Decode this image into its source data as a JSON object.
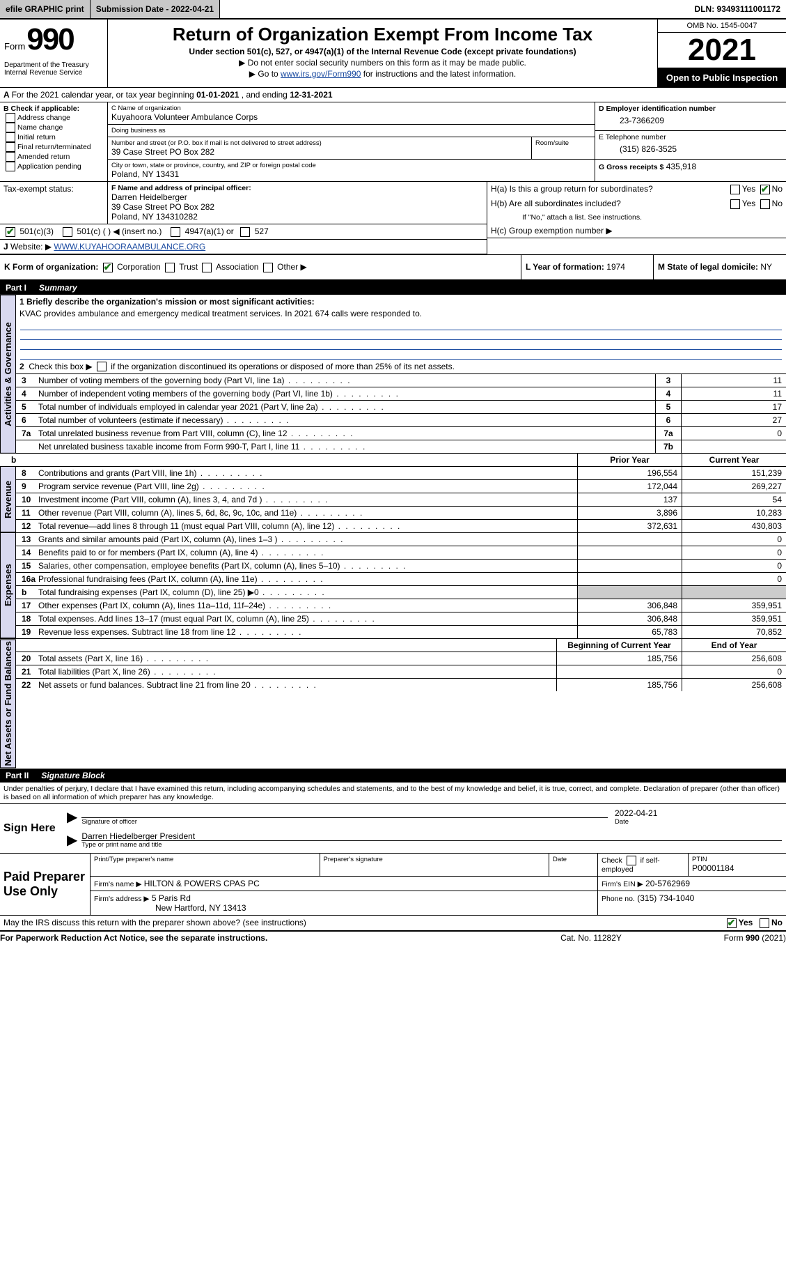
{
  "colors": {
    "link": "#1a4aa0",
    "sidetab_bg": "#d9d9f0",
    "grey_cell": "#cccccc",
    "topbar_btn": "#c8c8c8",
    "check": "#1a7a1a"
  },
  "topbar": {
    "efile": "efile GRAPHIC print",
    "submission_label": "Submission Date - 2022-04-21",
    "dln": "DLN: 93493111001172"
  },
  "header": {
    "form_word": "Form",
    "form_no": "990",
    "dept": "Department of the Treasury\nInternal Revenue Service",
    "title": "Return of Organization Exempt From Income Tax",
    "sub1": "Under section 501(c), 527, or 4947(a)(1) of the Internal Revenue Code (except private foundations)",
    "sub2": "▶ Do not enter social security numbers on this form as it may be made public.",
    "sub3_pre": "▶ Go to ",
    "sub3_link": "www.irs.gov/Form990",
    "sub3_post": " for instructions and the latest information.",
    "omb": "OMB No. 1545-0047",
    "year": "2021",
    "open_pub": "Open to Public Inspection"
  },
  "lineA": {
    "text_pre": "For the 2021 calendar year, or tax year beginning ",
    "begin": "01-01-2021",
    "mid": " , and ending ",
    "end": "12-31-2021"
  },
  "boxB": {
    "label": "B Check if applicable:",
    "items": [
      "Address change",
      "Name change",
      "Initial return",
      "Final return/terminated",
      "Amended return",
      "Application pending"
    ]
  },
  "boxC": {
    "label": "C Name of organization",
    "name": "Kuyahoora Volunteer Ambulance Corps",
    "dba_label": "Doing business as",
    "dba": "",
    "addr_label": "Number and street (or P.O. box if mail is not delivered to street address)",
    "room_label": "Room/suite",
    "addr": "39 Case Street PO Box 282",
    "city_label": "City or town, state or province, country, and ZIP or foreign postal code",
    "city": "Poland, NY  13431"
  },
  "boxD": {
    "label": "D Employer identification number",
    "value": "23-7366209"
  },
  "boxE": {
    "label": "E Telephone number",
    "value": "(315) 826-3525"
  },
  "boxG": {
    "label": "G Gross receipts $",
    "value": "435,918"
  },
  "boxF": {
    "label": "F Name and address of principal officer:",
    "lines": [
      "Darren Heidelberger",
      "39 Case Street PO Box 282",
      "Poland, NY  134310282"
    ]
  },
  "boxH": {
    "ha": "H(a)  Is this a group return for subordinates?",
    "hb": "H(b)  Are all subordinates included?",
    "hb_note": "If \"No,\" attach a list. See instructions.",
    "hc": "H(c)  Group exemption number ▶",
    "yes": "Yes",
    "no": "No"
  },
  "lineI": {
    "label": "Tax-exempt status:",
    "opts": [
      "501(c)(3)",
      "501(c) (  ) ◀ (insert no.)",
      "4947(a)(1) or",
      "527"
    ]
  },
  "lineJ": {
    "label": "Website: ▶",
    "value": "WWW.KUYAHOORAAMBULANCE.ORG"
  },
  "lineK": {
    "label": "K Form of organization:",
    "opts": [
      "Corporation",
      "Trust",
      "Association",
      "Other ▶"
    ]
  },
  "lineL": {
    "label": "L Year of formation:",
    "value": "1974"
  },
  "lineM": {
    "label": "M State of legal domicile:",
    "value": "NY"
  },
  "part1": {
    "bar": "Part I",
    "title": "Summary",
    "q1_label": "1  Briefly describe the organization's mission or most significant activities:",
    "q1_text": "KVAC provides ambulance and emergency medical treatment services. In 2021 674 calls were responded to.",
    "q2": "2  Check this box ▶      if the organization discontinued its operations or disposed of more than 25% of its net assets.",
    "governance": [
      {
        "n": "3",
        "d": "Number of voting members of the governing body (Part VI, line 1a)",
        "c": "3",
        "v": "11"
      },
      {
        "n": "4",
        "d": "Number of independent voting members of the governing body (Part VI, line 1b)",
        "c": "4",
        "v": "11"
      },
      {
        "n": "5",
        "d": "Total number of individuals employed in calendar year 2021 (Part V, line 2a)",
        "c": "5",
        "v": "17"
      },
      {
        "n": "6",
        "d": "Total number of volunteers (estimate if necessary)",
        "c": "6",
        "v": "27"
      },
      {
        "n": "7a",
        "d": "Total unrelated business revenue from Part VIII, column (C), line 12",
        "c": "7a",
        "v": "0"
      },
      {
        "n": "",
        "d": "Net unrelated business taxable income from Form 990-T, Part I, line 11",
        "c": "7b",
        "v": ""
      }
    ],
    "cols": {
      "prior": "Prior Year",
      "current": "Current Year",
      "bcy": "Beginning of Current Year",
      "eoy": "End of Year"
    },
    "revenue": [
      {
        "n": "8",
        "d": "Contributions and grants (Part VIII, line 1h)",
        "p": "196,554",
        "c": "151,239"
      },
      {
        "n": "9",
        "d": "Program service revenue (Part VIII, line 2g)",
        "p": "172,044",
        "c": "269,227"
      },
      {
        "n": "10",
        "d": "Investment income (Part VIII, column (A), lines 3, 4, and 7d )",
        "p": "137",
        "c": "54"
      },
      {
        "n": "11",
        "d": "Other revenue (Part VIII, column (A), lines 5, 6d, 8c, 9c, 10c, and 11e)",
        "p": "3,896",
        "c": "10,283"
      },
      {
        "n": "12",
        "d": "Total revenue—add lines 8 through 11 (must equal Part VIII, column (A), line 12)",
        "p": "372,631",
        "c": "430,803"
      }
    ],
    "expenses": [
      {
        "n": "13",
        "d": "Grants and similar amounts paid (Part IX, column (A), lines 1–3 )",
        "p": "",
        "c": "0"
      },
      {
        "n": "14",
        "d": "Benefits paid to or for members (Part IX, column (A), line 4)",
        "p": "",
        "c": "0"
      },
      {
        "n": "15",
        "d": "Salaries, other compensation, employee benefits (Part IX, column (A), lines 5–10)",
        "p": "",
        "c": "0"
      },
      {
        "n": "16a",
        "d": "Professional fundraising fees (Part IX, column (A), line 11e)",
        "p": "",
        "c": "0"
      },
      {
        "n": "b",
        "d": "Total fundraising expenses (Part IX, column (D), line 25) ▶0",
        "p": "GREY",
        "c": "GREY"
      },
      {
        "n": "17",
        "d": "Other expenses (Part IX, column (A), lines 11a–11d, 11f–24e)",
        "p": "306,848",
        "c": "359,951"
      },
      {
        "n": "18",
        "d": "Total expenses. Add lines 13–17 (must equal Part IX, column (A), line 25)",
        "p": "306,848",
        "c": "359,951"
      },
      {
        "n": "19",
        "d": "Revenue less expenses. Subtract line 18 from line 12",
        "p": "65,783",
        "c": "70,852"
      }
    ],
    "netassets": [
      {
        "n": "20",
        "d": "Total assets (Part X, line 16)",
        "p": "185,756",
        "c": "256,608"
      },
      {
        "n": "21",
        "d": "Total liabilities (Part X, line 26)",
        "p": "",
        "c": "0"
      },
      {
        "n": "22",
        "d": "Net assets or fund balances. Subtract line 21 from line 20",
        "p": "185,756",
        "c": "256,608"
      }
    ],
    "side_labels": {
      "gov": "Activities & Governance",
      "rev": "Revenue",
      "exp": "Expenses",
      "net": "Net Assets or Fund Balances"
    }
  },
  "part2": {
    "bar": "Part II",
    "title": "Signature Block",
    "penalties": "Under penalties of perjury, I declare that I have examined this return, including accompanying schedules and statements, and to the best of my knowledge and belief, it is true, correct, and complete. Declaration of preparer (other than officer) is based on all information of which preparer has any knowledge.",
    "sign_here": "Sign Here",
    "sig_officer": "Signature of officer",
    "sig_date_val": "2022-04-21",
    "date": "Date",
    "officer_name": "Darren Hiedelberger  President",
    "type_name": "Type or print name and title",
    "paid_prep": "Paid Preparer Use Only",
    "prep_cols": [
      "Print/Type preparer's name",
      "Preparer's signature",
      "Date"
    ],
    "check_if": "Check      if self-employed",
    "ptin_label": "PTIN",
    "ptin": "P00001184",
    "firm_name_label": "Firm's name    ▶",
    "firm_name": "HILTON & POWERS CPAS PC",
    "firm_ein_label": "Firm's EIN ▶",
    "firm_ein": "20-5762969",
    "firm_addr_label": "Firm's address ▶",
    "firm_addr1": "5 Paris Rd",
    "firm_addr2": "New Hartford, NY  13413",
    "phone_label": "Phone no.",
    "phone": "(315) 734-1040",
    "discuss": "May the IRS discuss this return with the preparer shown above? (see instructions)"
  },
  "footer": {
    "pra": "For Paperwork Reduction Act Notice, see the separate instructions.",
    "cat": "Cat. No. 11282Y",
    "formrev": "Form 990 (2021)"
  }
}
